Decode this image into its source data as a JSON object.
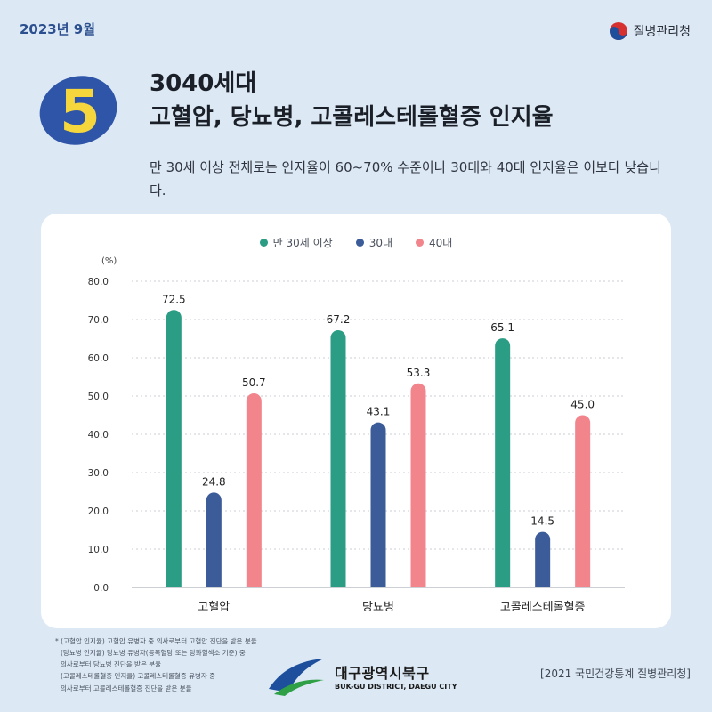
{
  "header": {
    "date": "2023년 9월",
    "agency": "질병관리청",
    "badge_number": "5",
    "title_line1": "3040세대",
    "title_line2": "고혈압, 당뇨병, 고콜레스테롤혈증 인지율",
    "subtitle": "만 30세 이상 전체로는 인지율이 60~70% 수준이나 30대와 40대 인지율은 이보다 낮습니다."
  },
  "colors": {
    "series_all": "#2a9d84",
    "series_30s": "#3c5b99",
    "series_40s": "#f2848c",
    "badge_blue": "#2f55a8",
    "badge_yellow": "#f5d63d"
  },
  "chart_data": {
    "type": "bar",
    "unit": "(%)",
    "categories": [
      "고혈압",
      "당뇨병",
      "고콜레스테롤혈증"
    ],
    "series": [
      {
        "name": "만 30세 이상",
        "values": [
          72.5,
          67.2,
          65.1
        ]
      },
      {
        "name": "30대",
        "values": [
          24.8,
          43.1,
          14.5
        ]
      },
      {
        "name": "40대",
        "values": [
          50.7,
          53.3,
          45.0
        ]
      }
    ],
    "value_labels": [
      [
        "72.5",
        "67.2",
        "65.1"
      ],
      [
        "24.8",
        "43.1",
        "14.5"
      ],
      [
        "50.7",
        "53.3",
        "45.0"
      ]
    ],
    "ylim": [
      0,
      80
    ],
    "yticks": [
      "0.0",
      "10.0",
      "20.0",
      "30.0",
      "40.0",
      "50.0",
      "60.0",
      "70.0",
      "80.0"
    ],
    "grid": true,
    "legend_position": "top"
  },
  "footer": {
    "notes": [
      "* (고혈압 인지율) 고혈압 유병자 중 의사로부터 고혈압 진단을 받은 분율",
      "(당뇨병 인지율) 당뇨병 유병자(공복혈당 또는 당화혈색소 기준) 중",
      "의사로부터 당뇨병 진단을 받은 분율",
      "(고콜레스테롤혈증 인지율) 고콜레스테롤혈증 유병자 중",
      "의사로부터 고콜레스테롤혈증 진단을 받은 분율"
    ],
    "district_ko": "대구광역시북구",
    "district_en": "BUK-GU DISTRICT, DAEGU CITY",
    "source": "[2021 국민건강통계 질병관리청]"
  }
}
